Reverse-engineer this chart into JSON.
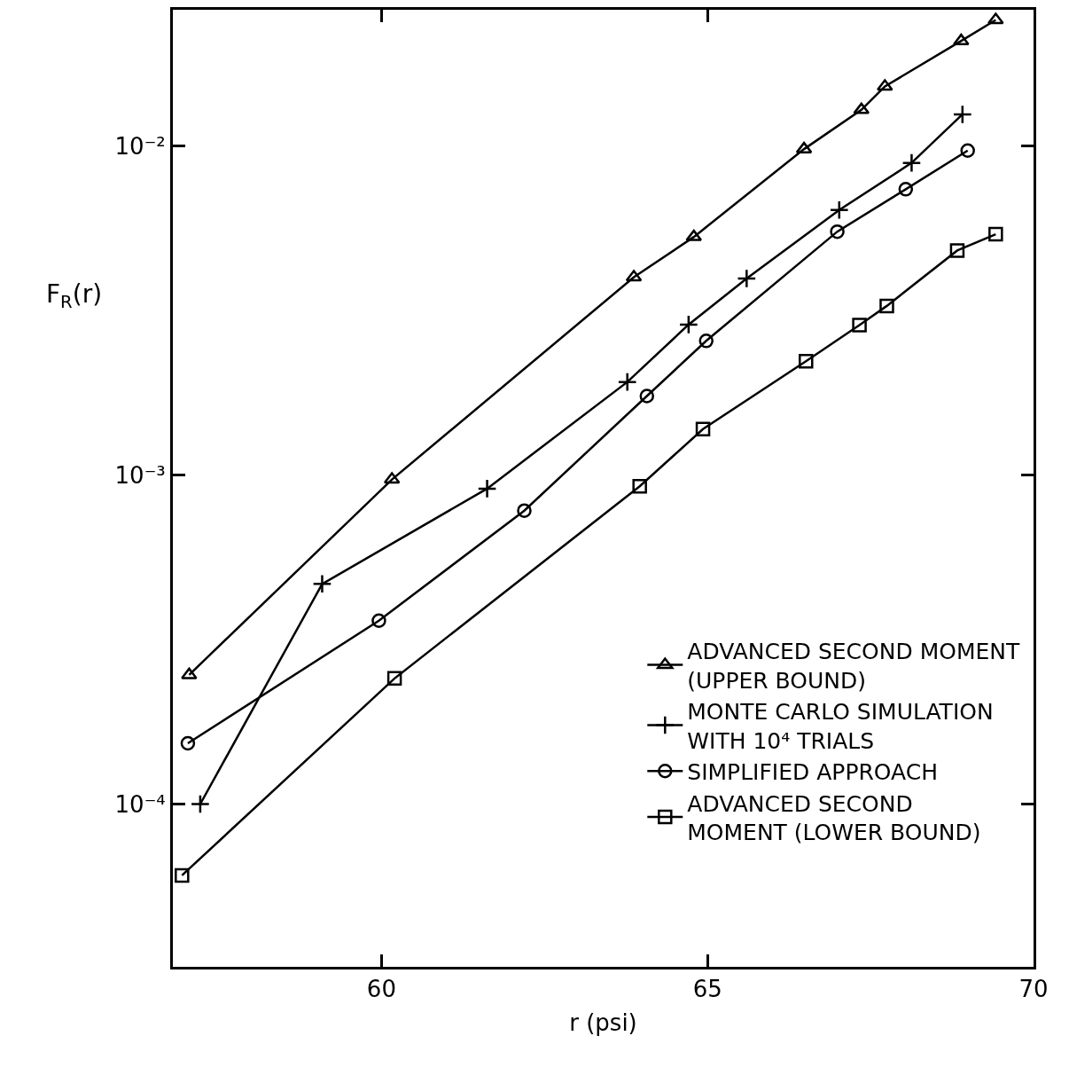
{
  "chart_data": {
    "type": "line",
    "xlabel": "r (psi)",
    "ylabel": "F$_{R}$(r)",
    "log": "y",
    "legend": "bottom right",
    "xlim": [
      56.8,
      70
    ],
    "xticks": [
      60,
      65,
      70
    ],
    "ylim": [
      3.2e-05,
      0.026
    ],
    "yticks": [
      {
        "value": 0.0001,
        "label": "10⁻⁴"
      },
      {
        "value": 0.001,
        "label": "10⁻³"
      },
      {
        "value": 0.01,
        "label": "10⁻²"
      }
    ],
    "series": [
      {
        "name": "ADVANCED SECOND MOMENT\n(UPPER BOUND)",
        "color": "#000000",
        "marker": "triangle",
        "x": [
          57.05,
          60.16,
          63.87,
          64.79,
          66.48,
          67.36,
          67.72,
          68.89,
          69.42
        ],
        "values": [
          0.000247,
          0.00097,
          0.004,
          0.0053,
          0.0098,
          0.0129,
          0.0152,
          0.0209,
          0.0242
        ]
      },
      {
        "name": "MONTE CARLO SIMULATION\nWITH 10⁴ TRIALS",
        "color": "#000000",
        "marker": "cross",
        "x": [
          57.22,
          59.09,
          61.62,
          63.77,
          64.71,
          65.6,
          67.02,
          68.13,
          68.91
        ],
        "values": [
          0.0001,
          0.000467,
          0.00091,
          0.00192,
          0.00287,
          0.00396,
          0.0064,
          0.0089,
          0.0125
        ]
      },
      {
        "name": "SIMPLIFIED APPROACH",
        "color": "#000000",
        "marker": "circle",
        "x": [
          57.03,
          59.96,
          62.19,
          64.07,
          64.98,
          66.99,
          68.04,
          68.99
        ],
        "values": [
          0.000153,
          0.000361,
          0.00078,
          0.00174,
          0.00256,
          0.0055,
          0.0074,
          0.0097
        ]
      },
      {
        "name": "ADVANCED SECOND\nMOMENT (LOWER BOUND)",
        "color": "#000000",
        "marker": "square",
        "x": [
          56.94,
          60.2,
          63.96,
          64.93,
          66.51,
          67.33,
          67.75,
          68.83,
          69.42
        ],
        "values": [
          6.07e-05,
          0.000241,
          0.000925,
          0.00138,
          0.00222,
          0.00286,
          0.00327,
          0.00482,
          0.0054
        ]
      }
    ]
  }
}
